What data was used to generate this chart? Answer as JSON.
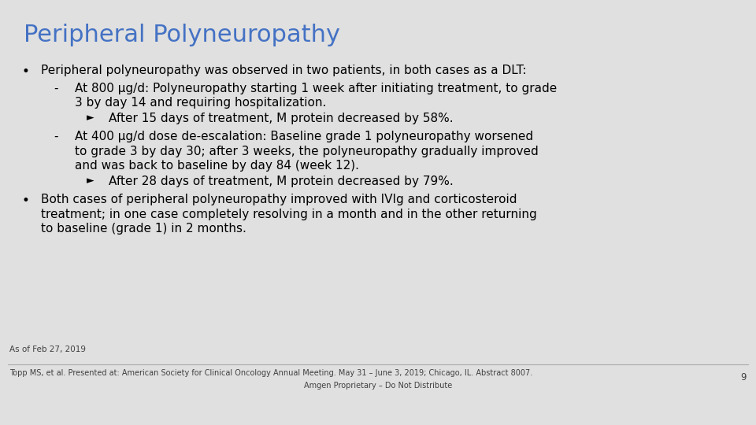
{
  "background_color": "#e0e0e0",
  "title": "Peripheral Polyneuropathy",
  "title_color": "#4472c4",
  "title_fontsize": 22,
  "body_color": "#000000",
  "body_fontsize": 11.0,
  "footer_color": "#404040",
  "footer_fontsize": 7.5,
  "page_number": "9",
  "content_lines": [
    {
      "level": 0,
      "text": "Peripheral polyneuropathy was observed in two patients, in both cases as a DLT:"
    },
    {
      "level": 1,
      "text": "At 800 μg/d: Polyneuropathy starting 1 week after initiating treatment, to grade\n3 by day 14 and requiring hospitalization."
    },
    {
      "level": 2,
      "text": "After 15 days of treatment, M protein decreased by 58%."
    },
    {
      "level": 1,
      "text": "At 400 μg/d dose de-escalation: Baseline grade 1 polyneuropathy worsened\nto grade 3 by day 30; after 3 weeks, the polyneuropathy gradually improved\nand was back to baseline by day 84 (week 12)."
    },
    {
      "level": 2,
      "text": "After 28 days of treatment, M protein decreased by 79%."
    },
    {
      "level": 0,
      "text": "Both cases of peripheral polyneuropathy improved with IVIg and corticosteroid\ntreatment; in one case completely resolving in a month and in the other returning\nto baseline (grade 1) in 2 months."
    }
  ],
  "footnote_date": "As of Feb 27, 2019",
  "footnote_ref": "Topp MS, et al. Presented at: American Society for Clinical Oncology Annual Meeting. May 31 – June 3, 2019; Chicago, IL. Abstract 8007.",
  "footnote_proprietary": "Amgen Proprietary – Do Not Distribute",
  "separator_color": "#aaaaaa"
}
